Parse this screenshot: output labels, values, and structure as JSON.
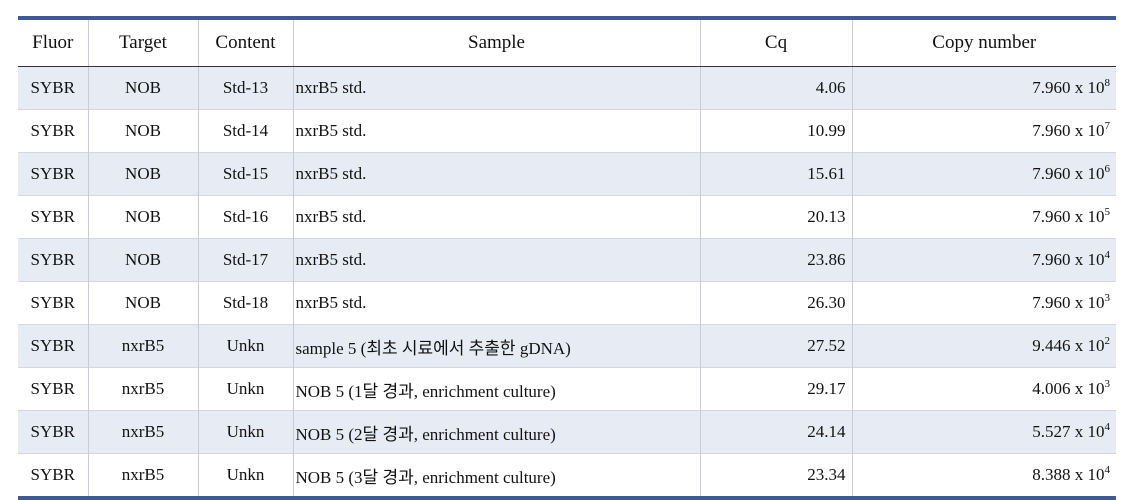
{
  "table": {
    "columns": [
      "Fluor",
      "Target",
      "Content",
      "Sample",
      "Cq",
      "Copy number"
    ],
    "rows": [
      [
        "SYBR",
        "NOB",
        "Std-13",
        "nxrB5 std.",
        "4.06",
        {
          "base": "7.960 x 10",
          "exp": "8"
        }
      ],
      [
        "SYBR",
        "NOB",
        "Std-14",
        "nxrB5 std.",
        "10.99",
        {
          "base": "7.960 x 10",
          "exp": "7"
        }
      ],
      [
        "SYBR",
        "NOB",
        "Std-15",
        "nxrB5 std.",
        "15.61",
        {
          "base": "7.960 x 10",
          "exp": "6"
        }
      ],
      [
        "SYBR",
        "NOB",
        "Std-16",
        "nxrB5 std.",
        "20.13",
        {
          "base": "7.960 x 10",
          "exp": "5"
        }
      ],
      [
        "SYBR",
        "NOB",
        "Std-17",
        "nxrB5 std.",
        "23.86",
        {
          "base": "7.960 x 10",
          "exp": "4"
        }
      ],
      [
        "SYBR",
        "NOB",
        "Std-18",
        "nxrB5 std.",
        "26.30",
        {
          "base": "7.960 x 10",
          "exp": "3"
        }
      ],
      [
        "SYBR",
        "nxrB5",
        "Unkn",
        "sample 5 (최초 시료에서 추출한 gDNA)",
        "27.52",
        {
          "base": "9.446 x 10",
          "exp": "2"
        }
      ],
      [
        "SYBR",
        "nxrB5",
        "Unkn",
        "NOB 5 (1달 경과, enrichment culture)",
        "29.17",
        {
          "base": "4.006 x 10",
          "exp": "3"
        }
      ],
      [
        "SYBR",
        "nxrB5",
        "Unkn",
        "NOB 5 (2달 경과, enrichment culture)",
        "24.14",
        {
          "base": "5.527 x 10",
          "exp": "4"
        }
      ],
      [
        "SYBR",
        "nxrB5",
        "Unkn",
        "NOB 5 (3달 경과, enrichment culture)",
        "23.34",
        {
          "base": "8.388 x 10",
          "exp": "4"
        }
      ]
    ]
  }
}
